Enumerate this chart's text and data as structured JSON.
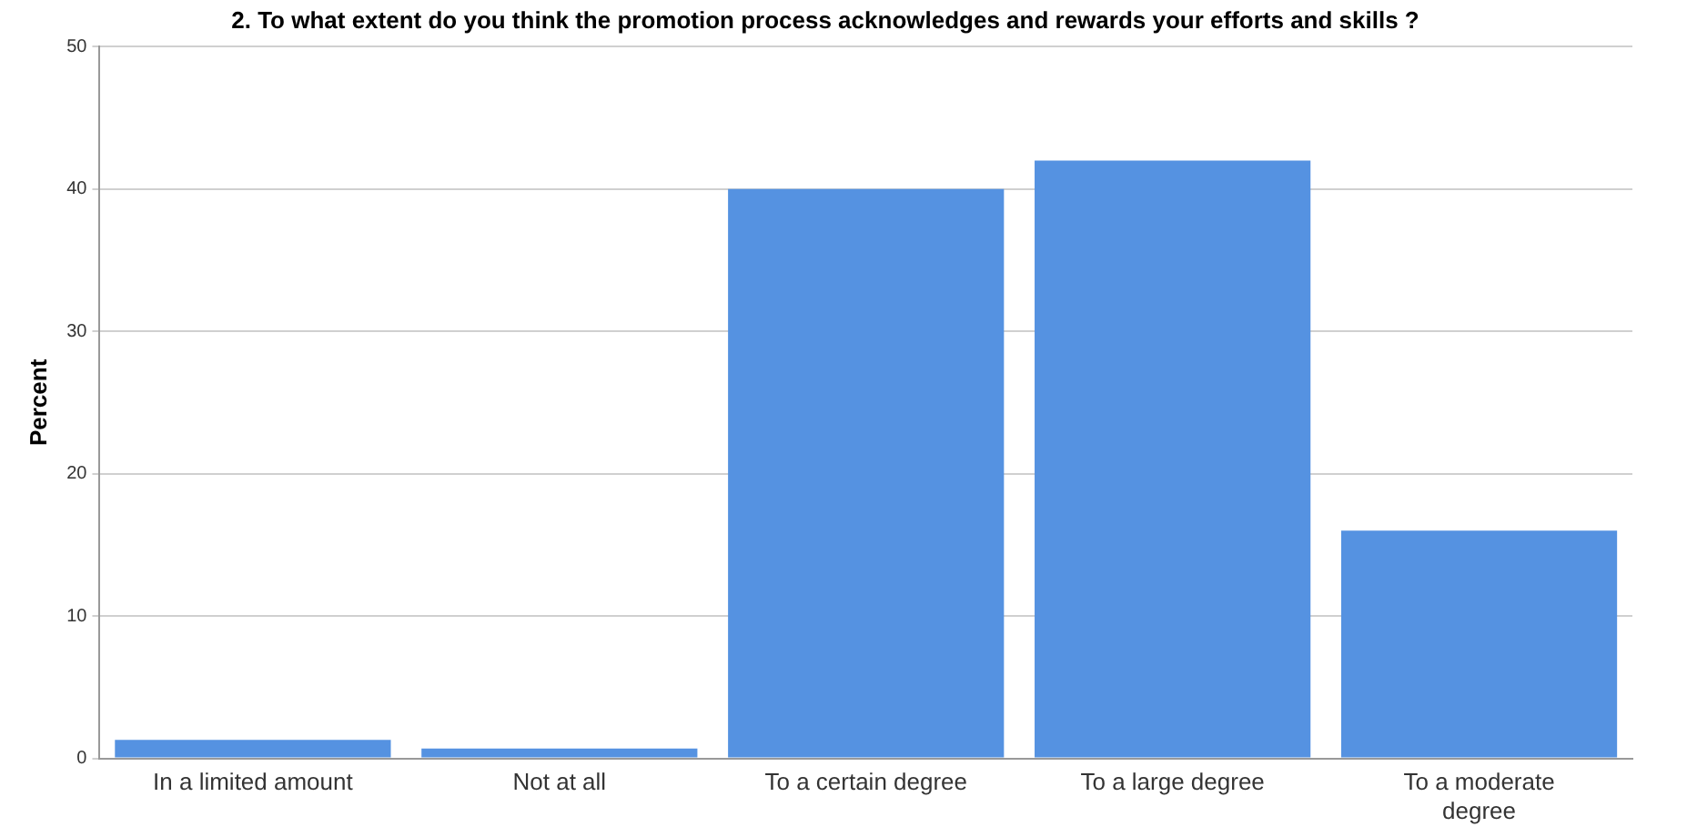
{
  "chart_data": {
    "type": "bar",
    "title": "2. To what extent do you think the promotion process acknowledges and rewards your efforts and skills ?",
    "ylabel": "Percent",
    "categories": [
      "In a limited amount",
      "Not at all",
      "To a certain degree",
      "To a large degree",
      "To a moderate degree"
    ],
    "values": [
      1.3,
      0.7,
      40,
      42,
      16
    ],
    "color": "#5592e1",
    "ylim": [
      0,
      50
    ],
    "yticks": [
      0,
      10,
      20,
      30,
      40,
      50
    ],
    "grid": "y",
    "legend": false
  }
}
